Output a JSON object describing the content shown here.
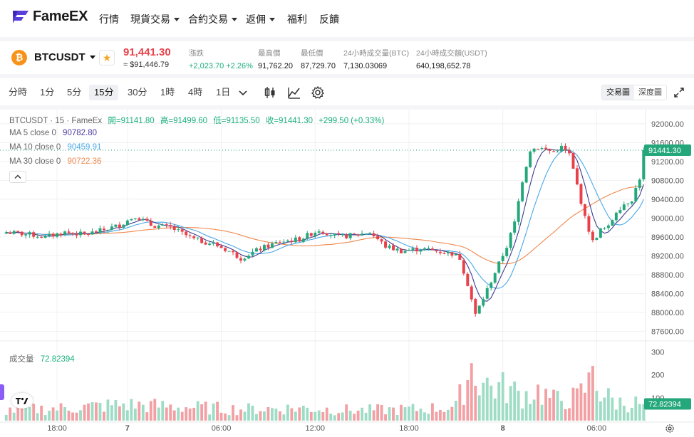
{
  "nav": {
    "brand": "FameEX",
    "items": [
      {
        "label": "行情",
        "dropdown": false
      },
      {
        "label": "現貨交易",
        "dropdown": true
      },
      {
        "label": "合約交易",
        "dropdown": true
      },
      {
        "label": "返佣",
        "dropdown": true
      },
      {
        "label": "福利",
        "dropdown": false
      },
      {
        "label": "反饋",
        "dropdown": false
      }
    ]
  },
  "ticker": {
    "coin_glyph": "₿",
    "symbol": "BTCUSDT",
    "price": "91,441.30",
    "price_usd": "≈ $91,446.79",
    "stats": [
      {
        "label": "漲跌",
        "value": "+2,023.70 +2.26%",
        "positive": true
      },
      {
        "label": "最高價",
        "value": "91,762.20",
        "positive": false
      },
      {
        "label": "最低價",
        "value": "87,729.70",
        "positive": false
      },
      {
        "label": "24小時成交量(BTC)",
        "value": "7,130.03069",
        "positive": false
      },
      {
        "label": "24小時成交額(USDT)",
        "value": "640,198,652.78",
        "positive": false
      }
    ]
  },
  "toolbar": {
    "timeframes": [
      "分時",
      "1分",
      "5分",
      "15分",
      "30分",
      "1時",
      "4時",
      "1日"
    ],
    "active_timeframe": "15分",
    "view_tabs": [
      "交易圖",
      "深度圖"
    ],
    "active_view": "交易圖"
  },
  "legend": {
    "ohlc_title": "BTCUSDT · 15 · FameEx",
    "open_label": "開=91141.80",
    "high_label": "高=91499.60",
    "low_label": "低=91135.50",
    "close_label": "收=91441.30",
    "change_label": "+299.50 (+0.33%)",
    "ma5_label": "MA 5 close 0",
    "ma5_value": "90782.80",
    "ma10_label": "MA 10 close 0",
    "ma10_value": "90459.91",
    "ma30_label": "MA 30 close 0",
    "ma30_value": "90722.36",
    "volume_label": "成交量",
    "volume_value": "72.82394"
  },
  "colors": {
    "up": "#25a77c",
    "down": "#e8414a",
    "vol_up": "#9fdcc6",
    "vol_down": "#f2a0a4",
    "ma5": "#3b3b8f",
    "ma10": "#4aa8e8",
    "ma30": "#f0884d",
    "ma5_text": "#4b3aa0",
    "ma10_text": "#4aa8e8",
    "ma30_text": "#f0884d"
  },
  "chart_data": {
    "type": "candlestick",
    "y_ticks": [
      "92000.00",
      "91600.00",
      "91200.00",
      "90800.00",
      "90400.00",
      "90000.00",
      "89600.00",
      "89200.00",
      "88800.00",
      "88400.00",
      "88000.00",
      "87600.00"
    ],
    "ylim": [
      87500,
      92150
    ],
    "last_price_label": "91441.30",
    "last_price": 91441.3,
    "volume_ticks": [
      "300",
      "200",
      "100"
    ],
    "volume_ylim": [
      0,
      320
    ],
    "last_volume_label": "72.82394",
    "x_ticks": [
      {
        "label": "18:00",
        "index": 13
      },
      {
        "label": "7",
        "index": 31
      },
      {
        "label": "06:00",
        "index": 55
      },
      {
        "label": "12:00",
        "index": 79
      },
      {
        "label": "18:00",
        "index": 103
      },
      {
        "label": "8",
        "index": 127
      },
      {
        "label": "06:00",
        "index": 151
      }
    ],
    "key_points": [
      [
        0,
        89700
      ],
      [
        6,
        89650
      ],
      [
        10,
        89600
      ],
      [
        15,
        89700
      ],
      [
        20,
        89650
      ],
      [
        25,
        89750
      ],
      [
        29,
        89850
      ],
      [
        33,
        90050
      ],
      [
        37,
        89850
      ],
      [
        42,
        89800
      ],
      [
        48,
        89550
      ],
      [
        53,
        89450
      ],
      [
        57,
        89300
      ],
      [
        60,
        89150
      ],
      [
        65,
        89350
      ],
      [
        70,
        89500
      ],
      [
        75,
        89550
      ],
      [
        80,
        89750
      ],
      [
        85,
        89600
      ],
      [
        90,
        89650
      ],
      [
        93,
        89700
      ],
      [
        97,
        89400
      ],
      [
        101,
        89300
      ],
      [
        106,
        89350
      ],
      [
        110,
        89300
      ],
      [
        114,
        89250
      ],
      [
        116,
        89150
      ],
      [
        118,
        88600
      ],
      [
        120,
        87950
      ],
      [
        122,
        88300
      ],
      [
        125,
        88850
      ],
      [
        128,
        89400
      ],
      [
        130,
        89900
      ],
      [
        132,
        90800
      ],
      [
        134,
        91450
      ],
      [
        136,
        91500
      ],
      [
        138,
        91450
      ],
      [
        140,
        91400
      ],
      [
        142,
        91500
      ],
      [
        144,
        91350
      ],
      [
        146,
        90700
      ],
      [
        148,
        90000
      ],
      [
        150,
        89500
      ],
      [
        152,
        89750
      ],
      [
        154,
        89800
      ],
      [
        156,
        90150
      ],
      [
        158,
        90300
      ],
      [
        160,
        90400
      ],
      [
        162,
        90850
      ],
      [
        163,
        91441.3
      ]
    ],
    "volume_key_points": [
      [
        0,
        45
      ],
      [
        15,
        55
      ],
      [
        30,
        70
      ],
      [
        45,
        60
      ],
      [
        60,
        50
      ],
      [
        75,
        55
      ],
      [
        90,
        45
      ],
      [
        105,
        50
      ],
      [
        115,
        60
      ],
      [
        119,
        240
      ],
      [
        121,
        180
      ],
      [
        124,
        150
      ],
      [
        128,
        140
      ],
      [
        132,
        110
      ],
      [
        136,
        130
      ],
      [
        140,
        90
      ],
      [
        146,
        100
      ],
      [
        149,
        160
      ],
      [
        150,
        250
      ],
      [
        152,
        120
      ],
      [
        156,
        80
      ],
      [
        163,
        73
      ]
    ]
  }
}
